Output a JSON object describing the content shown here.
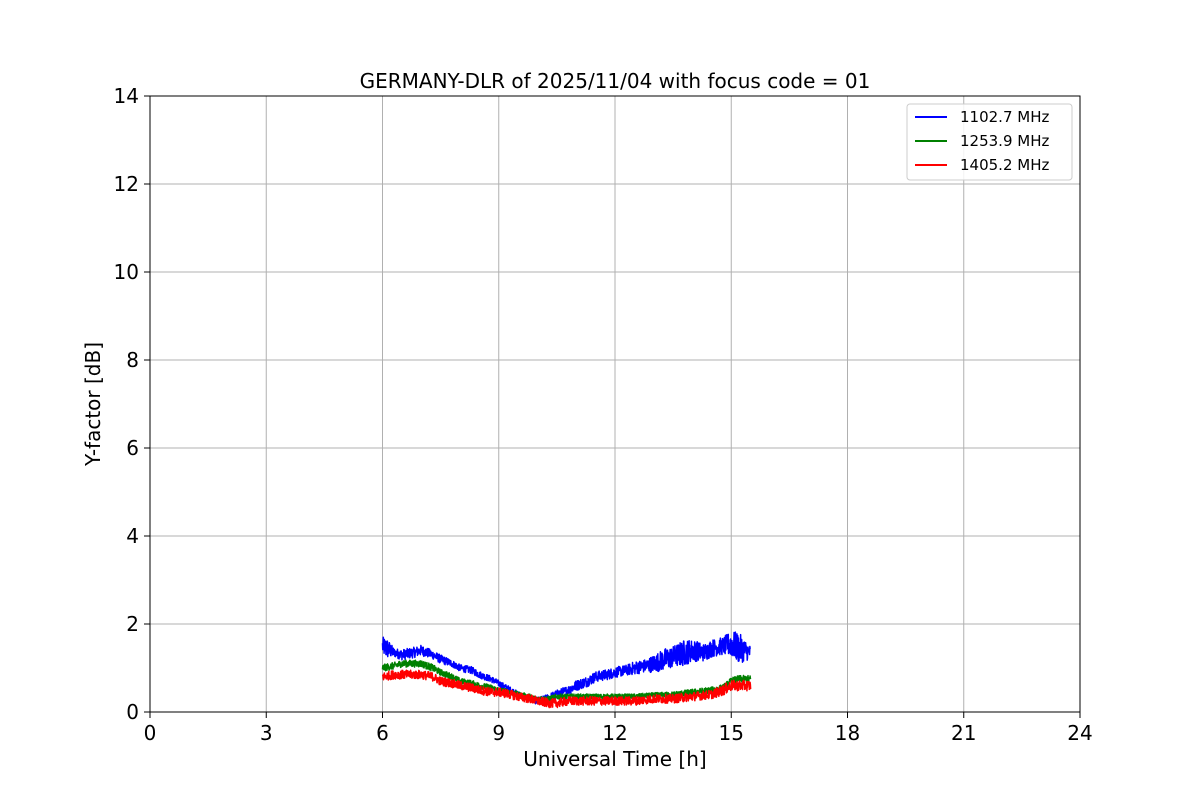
{
  "chart_data": {
    "type": "line",
    "title": "GERMANY-DLR of 2025/11/04 with focus code = 01",
    "xlabel": "Universal Time [h]",
    "ylabel": "Y-factor [dB]",
    "xlim": [
      0,
      24
    ],
    "ylim": [
      0,
      14
    ],
    "xticks": [
      0,
      3,
      6,
      9,
      12,
      15,
      18,
      21,
      24
    ],
    "yticks": [
      0,
      2,
      4,
      6,
      8,
      10,
      12,
      14
    ],
    "grid": true,
    "legend_position": "top-right",
    "series": [
      {
        "name": "1102.7 MHz",
        "color": "#0000ff",
        "x": [
          6.0,
          6.1,
          6.3,
          6.5,
          6.8,
          7.0,
          7.3,
          7.5,
          7.8,
          8.0,
          8.3,
          8.5,
          8.8,
          9.0,
          9.3,
          9.5,
          9.8,
          10.0,
          10.2,
          10.5,
          10.8,
          11.0,
          11.3,
          11.5,
          11.8,
          12.0,
          12.3,
          12.5,
          12.8,
          13.0,
          13.3,
          13.5,
          13.8,
          14.0,
          14.3,
          14.5,
          14.8,
          15.0,
          15.2,
          15.5
        ],
        "y": [
          1.5,
          1.45,
          1.35,
          1.3,
          1.35,
          1.4,
          1.3,
          1.2,
          1.1,
          1.0,
          0.95,
          0.85,
          0.75,
          0.65,
          0.5,
          0.4,
          0.3,
          0.25,
          0.3,
          0.4,
          0.5,
          0.6,
          0.7,
          0.8,
          0.85,
          0.9,
          0.95,
          1.0,
          1.05,
          1.1,
          1.2,
          1.25,
          1.35,
          1.4,
          1.35,
          1.45,
          1.5,
          1.55,
          1.45,
          1.35
        ],
        "noise": [
          0.2,
          0.25,
          0.1,
          0.12,
          0.12,
          0.12,
          0.1,
          0.1,
          0.08,
          0.08,
          0.08,
          0.08,
          0.07,
          0.07,
          0.07,
          0.07,
          0.07,
          0.08,
          0.08,
          0.1,
          0.1,
          0.12,
          0.12,
          0.12,
          0.12,
          0.12,
          0.12,
          0.15,
          0.15,
          0.2,
          0.25,
          0.25,
          0.3,
          0.25,
          0.2,
          0.2,
          0.2,
          0.3,
          0.35,
          0.15
        ]
      },
      {
        "name": "1253.9 MHz",
        "color": "#008000",
        "x": [
          6.0,
          6.3,
          6.5,
          6.8,
          7.0,
          7.3,
          7.5,
          7.8,
          8.0,
          8.3,
          8.5,
          8.8,
          9.0,
          9.3,
          9.5,
          9.8,
          10.0,
          10.3,
          10.5,
          10.8,
          11.0,
          11.5,
          12.0,
          12.5,
          13.0,
          13.5,
          14.0,
          14.5,
          14.8,
          15.0,
          15.2,
          15.5
        ],
        "y": [
          1.0,
          1.05,
          1.1,
          1.1,
          1.1,
          1.0,
          0.9,
          0.8,
          0.7,
          0.65,
          0.6,
          0.55,
          0.5,
          0.45,
          0.4,
          0.35,
          0.3,
          0.3,
          0.35,
          0.35,
          0.35,
          0.35,
          0.35,
          0.35,
          0.38,
          0.4,
          0.45,
          0.5,
          0.55,
          0.7,
          0.75,
          0.75
        ],
        "noise": [
          0.08,
          0.08,
          0.08,
          0.08,
          0.08,
          0.08,
          0.07,
          0.07,
          0.07,
          0.07,
          0.07,
          0.07,
          0.06,
          0.06,
          0.06,
          0.06,
          0.06,
          0.06,
          0.06,
          0.06,
          0.06,
          0.06,
          0.06,
          0.06,
          0.06,
          0.06,
          0.07,
          0.07,
          0.08,
          0.08,
          0.08,
          0.08
        ]
      },
      {
        "name": "1405.2 MHz",
        "color": "#ff0000",
        "x": [
          6.0,
          6.3,
          6.5,
          6.8,
          7.0,
          7.3,
          7.5,
          7.8,
          8.0,
          8.3,
          8.5,
          8.8,
          9.0,
          9.3,
          9.5,
          9.8,
          10.0,
          10.3,
          10.5,
          10.8,
          11.0,
          11.5,
          12.0,
          12.5,
          13.0,
          13.5,
          14.0,
          14.5,
          14.8,
          15.0,
          15.2,
          15.5
        ],
        "y": [
          0.8,
          0.85,
          0.85,
          0.85,
          0.85,
          0.8,
          0.7,
          0.65,
          0.6,
          0.55,
          0.5,
          0.45,
          0.45,
          0.4,
          0.35,
          0.3,
          0.25,
          0.2,
          0.2,
          0.25,
          0.25,
          0.25,
          0.25,
          0.25,
          0.3,
          0.3,
          0.35,
          0.4,
          0.5,
          0.6,
          0.6,
          0.6
        ],
        "noise": [
          0.1,
          0.1,
          0.1,
          0.1,
          0.1,
          0.1,
          0.1,
          0.1,
          0.1,
          0.1,
          0.1,
          0.1,
          0.1,
          0.1,
          0.1,
          0.1,
          0.1,
          0.1,
          0.1,
          0.1,
          0.1,
          0.1,
          0.1,
          0.1,
          0.1,
          0.1,
          0.1,
          0.1,
          0.12,
          0.12,
          0.12,
          0.12
        ]
      }
    ]
  }
}
